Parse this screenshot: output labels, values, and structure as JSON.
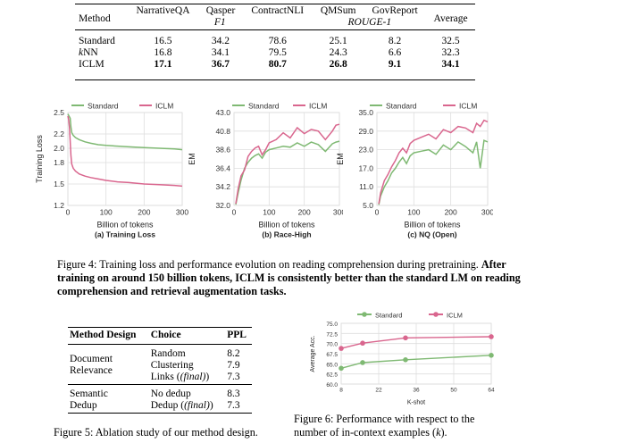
{
  "table1": {
    "headers": {
      "method": "Method",
      "cols": [
        "NarrativeQA",
        "Qasper",
        "ContractNLI",
        "QMSum",
        "GovReport"
      ],
      "average": "Average"
    },
    "metric_f1": "F1",
    "metric_rouge": "ROUGE-1",
    "rows": [
      {
        "method": "Standard",
        "values": [
          "16.5",
          "34.2",
          "78.6",
          "25.1",
          "8.2"
        ],
        "average": "32.5"
      },
      {
        "method": "kNN",
        "values": [
          "16.8",
          "34.1",
          "79.5",
          "24.3",
          "6.6"
        ],
        "average": "32.3"
      },
      {
        "method": "ICLM",
        "values": [
          "17.1",
          "36.7",
          "80.7",
          "26.8",
          "9.1"
        ],
        "average": "34.1"
      }
    ]
  },
  "figure4": {
    "colors": {
      "standard": "#7fb973",
      "iclm": "#d9668e"
    },
    "legend": {
      "standard": "Standard",
      "iclm": "ICLM"
    },
    "caption_prefix": "Figure 4:",
    "caption_text": "Training loss and performance evolution on reading comprehension during pretraining.",
    "caption_bold": "After training on around 150 billion tokens, ICLM is consistently better than the standard LM on reading comprehension and retrieval augmentation tasks."
  },
  "chart_data": [
    {
      "type": "line",
      "subtitle": "(a) Training Loss",
      "xlabel": "Billion of tokens",
      "ylabel": "Training Loss",
      "xlim": [
        0,
        300
      ],
      "ylim": [
        1.2,
        2.5
      ],
      "xticks": [
        "0",
        "100",
        "200",
        "300"
      ],
      "yticks": [
        "1.2",
        "1.5",
        "1.8",
        "2.0",
        "2.2",
        "2.5"
      ],
      "grid": true,
      "legend": "top",
      "series": [
        {
          "name": "Standard",
          "x": [
            0,
            2,
            4,
            6,
            8,
            10,
            14,
            20,
            30,
            45,
            60,
            80,
            100,
            130,
            160,
            200,
            240,
            280,
            300
          ],
          "values": [
            2.48,
            2.46,
            2.44,
            2.42,
            2.3,
            2.22,
            2.18,
            2.15,
            2.12,
            2.09,
            2.07,
            2.05,
            2.04,
            2.03,
            2.02,
            2.01,
            2.0,
            1.99,
            1.98
          ]
        },
        {
          "name": "ICLM",
          "x": [
            0,
            2,
            4,
            6,
            8,
            10,
            14,
            20,
            30,
            45,
            60,
            80,
            100,
            130,
            160,
            200,
            240,
            280,
            300
          ],
          "values": [
            2.45,
            2.4,
            2.3,
            2.1,
            1.9,
            1.78,
            1.72,
            1.68,
            1.64,
            1.61,
            1.59,
            1.57,
            1.55,
            1.53,
            1.52,
            1.5,
            1.49,
            1.48,
            1.47
          ]
        }
      ]
    },
    {
      "type": "line",
      "subtitle": "(b) Race-High",
      "xlabel": "Billion of tokens",
      "ylabel": "EM",
      "xlim": [
        0,
        300
      ],
      "ylim": [
        32.0,
        43.0
      ],
      "xticks": [
        "0",
        "100",
        "200",
        "300"
      ],
      "yticks": [
        "32.0",
        "34.2",
        "36.4",
        "38.6",
        "40.8",
        "43.0"
      ],
      "grid": true,
      "legend": "top",
      "series": [
        {
          "name": "Standard",
          "x": [
            5,
            12,
            20,
            30,
            40,
            50,
            60,
            70,
            80,
            90,
            100,
            120,
            140,
            160,
            180,
            200,
            220,
            240,
            260,
            280,
            290,
            300
          ],
          "values": [
            32.1,
            33.5,
            35.0,
            36.4,
            37.1,
            37.6,
            37.9,
            38.1,
            37.6,
            38.3,
            38.6,
            38.8,
            39.0,
            38.9,
            39.4,
            39.0,
            39.5,
            39.2,
            38.4,
            39.3,
            39.5,
            39.6
          ]
        },
        {
          "name": "ICLM",
          "x": [
            5,
            12,
            20,
            30,
            40,
            50,
            60,
            70,
            80,
            90,
            100,
            120,
            140,
            160,
            180,
            200,
            220,
            240,
            260,
            280,
            290,
            300
          ],
          "values": [
            32.2,
            34.0,
            35.5,
            36.2,
            37.8,
            38.4,
            38.8,
            39.0,
            38.0,
            38.6,
            39.4,
            39.8,
            40.6,
            40.0,
            41.2,
            40.5,
            41.0,
            40.8,
            39.8,
            40.8,
            41.5,
            41.6
          ]
        }
      ]
    },
    {
      "type": "line",
      "subtitle": "(c) NQ (Open)",
      "xlabel": "Billion of tokens",
      "ylabel": "EM",
      "xlim": [
        0,
        300
      ],
      "ylim": [
        5.0,
        35.0
      ],
      "xticks": [
        "0",
        "100",
        "200",
        "300"
      ],
      "yticks": [
        "5.0",
        "11.0",
        "17.0",
        "23.0",
        "29.0",
        "35.0"
      ],
      "grid": true,
      "legend": "top",
      "series": [
        {
          "name": "Standard",
          "x": [
            5,
            10,
            20,
            30,
            40,
            50,
            60,
            70,
            80,
            90,
            100,
            120,
            140,
            160,
            180,
            200,
            220,
            240,
            260,
            270,
            280,
            290,
            300
          ],
          "values": [
            5.2,
            8.0,
            11.0,
            13.0,
            15.5,
            17.0,
            19.0,
            20.5,
            18.5,
            21.0,
            22.0,
            22.5,
            23.0,
            21.5,
            24.5,
            23.0,
            25.5,
            24.0,
            22.0,
            25.5,
            17.0,
            26.0,
            25.5
          ]
        },
        {
          "name": "ICLM",
          "x": [
            5,
            10,
            20,
            30,
            40,
            50,
            60,
            70,
            80,
            90,
            100,
            120,
            140,
            160,
            180,
            200,
            220,
            240,
            260,
            270,
            280,
            290,
            300
          ],
          "values": [
            5.5,
            9.0,
            13.0,
            15.0,
            17.5,
            19.5,
            22.0,
            23.5,
            22.0,
            25.0,
            26.0,
            27.0,
            28.0,
            26.5,
            29.5,
            28.5,
            30.5,
            30.0,
            28.5,
            31.5,
            30.5,
            32.5,
            32.0
          ]
        }
      ]
    },
    {
      "type": "line",
      "xlabel": "K-shot",
      "ylabel": "Average Acc.",
      "xlim": [
        8,
        64
      ],
      "ylim": [
        60.0,
        75.0
      ],
      "xticks": [
        "8",
        "22",
        "36",
        "50",
        "64"
      ],
      "yticks": [
        "60.0",
        "62.5",
        "65.0",
        "67.5",
        "70.0",
        "72.5",
        "75.0"
      ],
      "grid": true,
      "legend": "top",
      "series": [
        {
          "name": "Standard",
          "x": [
            8,
            16,
            32,
            64
          ],
          "values": [
            63.9,
            65.3,
            66.0,
            67.1
          ]
        },
        {
          "name": "ICLM",
          "x": [
            8,
            16,
            32,
            64
          ],
          "values": [
            68.8,
            70.1,
            71.4,
            71.7
          ]
        }
      ]
    }
  ],
  "table2": {
    "headers": [
      "Method Design",
      "Choice",
      "PPL"
    ],
    "group1_label": [
      "Document",
      "Relevance"
    ],
    "group1_rows": [
      {
        "choice": "Random",
        "ppl": "8.2"
      },
      {
        "choice": "Clustering",
        "ppl": "7.9"
      },
      {
        "choice": "Links",
        "choice_suffix": "(final)",
        "ppl": "7.3"
      }
    ],
    "group2_label": [
      "Semantic",
      "Dedup"
    ],
    "group2_rows": [
      {
        "choice": "No dedup",
        "ppl": "8.3"
      },
      {
        "choice": "Dedup",
        "choice_suffix": "(final)",
        "ppl": "7.3"
      }
    ]
  },
  "figure5": {
    "caption": "Figure 5: Ablation study of our method design."
  },
  "figure6": {
    "caption_line1": "Figure 6: Performance with respect to the",
    "caption_line2a": "number of in-context examples (",
    "caption_k": "k",
    "caption_line2b": ")."
  }
}
